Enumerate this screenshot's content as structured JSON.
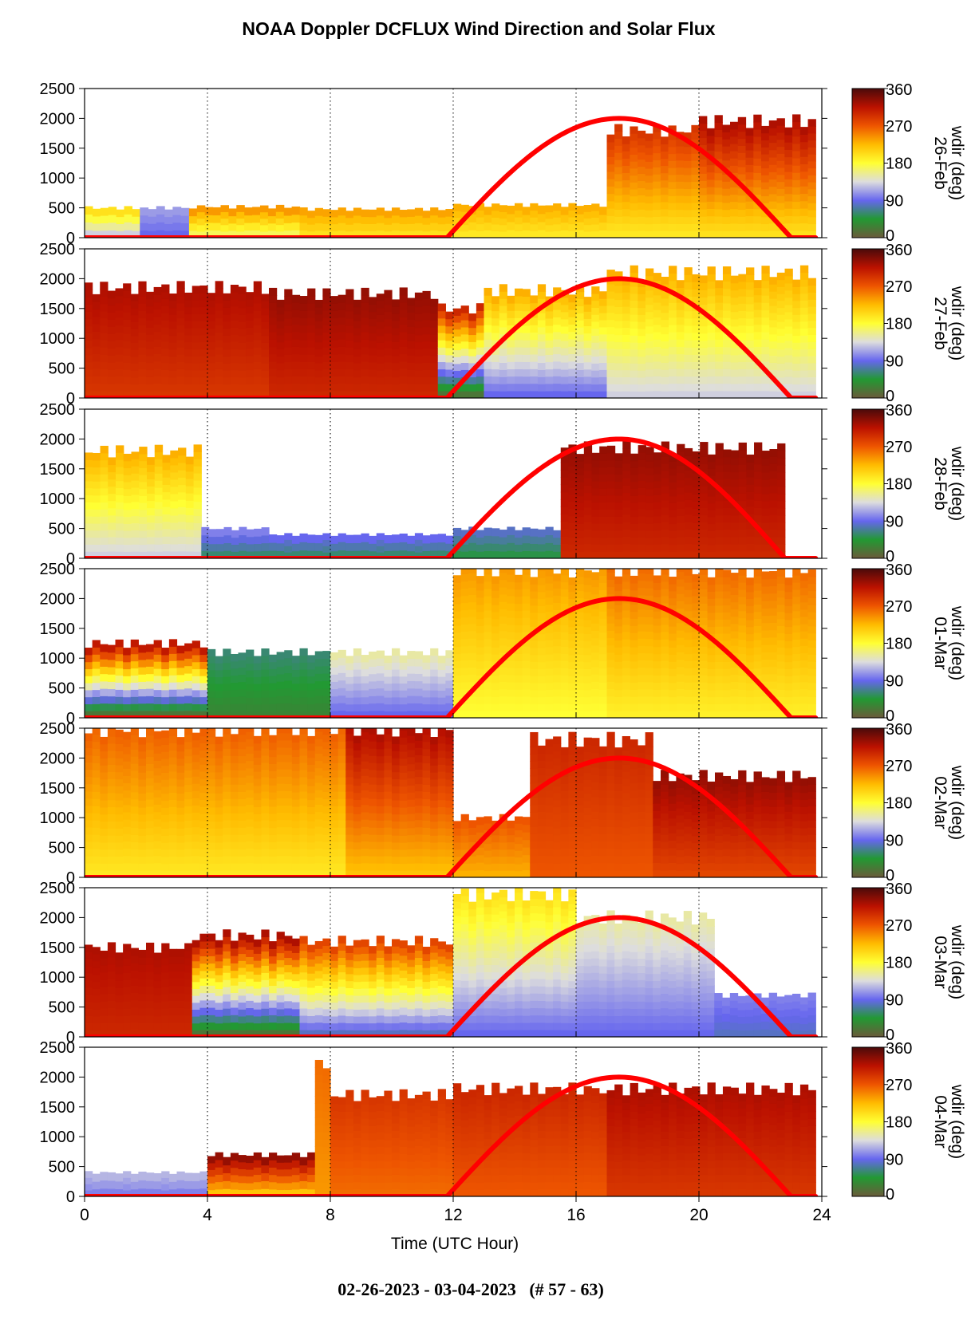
{
  "chart_data": {
    "type": "heatmap",
    "title": "NOAA Doppler DCFLUX Wind Direction and Solar Flux",
    "footer": "02-26-2023 - 03-04-2023   (# 57 - 63)",
    "xlabel": "Time (UTC Hour)",
    "xlim": [
      0,
      24
    ],
    "xticks": [
      "0",
      "4",
      "8",
      "12",
      "16",
      "20",
      "24"
    ],
    "xtick_values": [
      0,
      4,
      8,
      12,
      16,
      20,
      24
    ],
    "vertical_gridlines": [
      4,
      8,
      12,
      16,
      20,
      24
    ],
    "ylim": [
      0,
      2500
    ],
    "yticks": [
      "0",
      "500",
      "1000",
      "1500",
      "2000",
      "2500"
    ],
    "ytick_values": [
      0,
      500,
      1000,
      1500,
      2000,
      2500
    ],
    "colorbar": {
      "label": "wdir (deg)",
      "range": [
        0,
        360
      ],
      "ticks": [
        "0",
        "90",
        "180",
        "270",
        "360"
      ],
      "tick_values": [
        0,
        90,
        180,
        270,
        360
      ],
      "colors": [
        "#6b5a3a",
        "#229933",
        "#6666ee",
        "#dddddd",
        "#ffff33",
        "#ffbb00",
        "#ee5500",
        "#bb1100",
        "#4a0a0a"
      ]
    },
    "solar_flux": {
      "color": "#ff0000",
      "sunrise_hour": 11.8,
      "sunset_hour": 23.0,
      "peak_hour": 17.4,
      "peak_value": 2000
    },
    "panels": [
      {
        "date": "26-Feb",
        "sunset_hour": 23.0,
        "regions": [
          {
            "x": [
              0,
              1.8
            ],
            "ymax": 500,
            "wdir_low": 130,
            "wdir_high": 200
          },
          {
            "x": [
              1.8,
              3.4
            ],
            "ymax": 500,
            "wdir_low": 90,
            "wdir_high": 110
          },
          {
            "x": [
              3.4,
              7.0
            ],
            "ymax": 520,
            "wdir_low": 170,
            "wdir_high": 240
          },
          {
            "x": [
              7.0,
              12.0
            ],
            "ymax": 480,
            "wdir_low": 200,
            "wdir_high": 235
          },
          {
            "x": [
              12.0,
              17.0
            ],
            "ymax": 550,
            "wdir_low": 195,
            "wdir_high": 230
          },
          {
            "x": [
              17.0,
              20.0
            ],
            "ymax": 1800,
            "wdir_low": 195,
            "wdir_high": 290
          },
          {
            "x": [
              20.0,
              23.8
            ],
            "ymax": 1950,
            "wdir_low": 200,
            "wdir_high": 320
          }
        ]
      },
      {
        "date": "27-Feb",
        "sunset_hour": 23.0,
        "regions": [
          {
            "x": [
              0,
              6.0
            ],
            "ymax": 1850,
            "wdir_low": 290,
            "wdir_high": 320
          },
          {
            "x": [
              6.0,
              11.5
            ],
            "ymax": 1750,
            "wdir_low": 300,
            "wdir_high": 330
          },
          {
            "x": [
              11.5,
              13.0
            ],
            "ymax": 1500,
            "wdir_low": 20,
            "wdir_high": 300
          },
          {
            "x": [
              13.0,
              17.0
            ],
            "ymax": 1800,
            "wdir_low": 90,
            "wdir_high": 230
          },
          {
            "x": [
              17.0,
              23.8
            ],
            "ymax": 2100,
            "wdir_low": 130,
            "wdir_high": 230
          }
        ]
      },
      {
        "date": "28-Feb",
        "sunset_hour": 22.8,
        "regions": [
          {
            "x": [
              0,
              3.8
            ],
            "ymax": 1800,
            "wdir_low": 130,
            "wdir_high": 230
          },
          {
            "x": [
              3.8,
              6.0
            ],
            "ymax": 500,
            "wdir_low": 60,
            "wdir_high": 100
          },
          {
            "x": [
              6.0,
              12.0
            ],
            "ymax": 400,
            "wdir_low": 60,
            "wdir_high": 90
          },
          {
            "x": [
              12.0,
              15.5
            ],
            "ymax": 500,
            "wdir_low": 50,
            "wdir_high": 80
          },
          {
            "x": [
              15.5,
              22.8
            ],
            "ymax": 1850,
            "wdir_low": 300,
            "wdir_high": 330
          }
        ]
      },
      {
        "date": "01-Mar",
        "sunset_hour": 23.0,
        "regions": [
          {
            "x": [
              0,
              4.0
            ],
            "ymax": 1250,
            "wdir_low": 20,
            "wdir_high": 310
          },
          {
            "x": [
              4.0,
              8.0
            ],
            "ymax": 1100,
            "wdir_low": 30,
            "wdir_high": 60
          },
          {
            "x": [
              8.0,
              12.0
            ],
            "ymax": 1100,
            "wdir_low": 90,
            "wdir_high": 150
          },
          {
            "x": [
              12.0,
              17.0
            ],
            "ymax": 2500,
            "wdir_low": 180,
            "wdir_high": 240
          },
          {
            "x": [
              17.0,
              23.8
            ],
            "ymax": 2500,
            "wdir_low": 190,
            "wdir_high": 260
          }
        ]
      },
      {
        "date": "02-Mar",
        "sunset_hour": 23.0,
        "regions": [
          {
            "x": [
              0,
              8.5
            ],
            "ymax": 2500,
            "wdir_low": 195,
            "wdir_high": 265
          },
          {
            "x": [
              8.5,
              12.0
            ],
            "ymax": 2500,
            "wdir_low": 220,
            "wdir_high": 320
          },
          {
            "x": [
              12.0,
              14.5
            ],
            "ymax": 1000,
            "wdir_low": 230,
            "wdir_high": 270
          },
          {
            "x": [
              14.5,
              18.5
            ],
            "ymax": 2300,
            "wdir_low": 270,
            "wdir_high": 300
          },
          {
            "x": [
              18.5,
              23.8
            ],
            "ymax": 1700,
            "wdir_low": 280,
            "wdir_high": 330
          }
        ]
      },
      {
        "date": "03-Mar",
        "sunset_hour": 23.0,
        "regions": [
          {
            "x": [
              0,
              3.5
            ],
            "ymax": 1500,
            "wdir_low": 300,
            "wdir_high": 320
          },
          {
            "x": [
              3.5,
              7.0
            ],
            "ymax": 1700,
            "wdir_low": 20,
            "wdir_high": 320
          },
          {
            "x": [
              7.0,
              12.0
            ],
            "ymax": 1600,
            "wdir_low": 80,
            "wdir_high": 280
          },
          {
            "x": [
              12.0,
              16.0
            ],
            "ymax": 2400,
            "wdir_low": 90,
            "wdir_high": 200
          },
          {
            "x": [
              16.0,
              20.5
            ],
            "ymax": 2000,
            "wdir_low": 90,
            "wdir_high": 150
          },
          {
            "x": [
              20.5,
              23.8
            ],
            "ymax": 700,
            "wdir_low": 80,
            "wdir_high": 100
          }
        ]
      },
      {
        "date": "04-Mar",
        "sunset_hour": 23.0,
        "regions": [
          {
            "x": [
              0,
              4.0
            ],
            "ymax": 400,
            "wdir_low": 100,
            "wdir_high": 120
          },
          {
            "x": [
              4.0,
              7.5
            ],
            "ymax": 700,
            "wdir_low": 220,
            "wdir_high": 330
          },
          {
            "x": [
              7.5,
              8.0
            ],
            "ymax": 2250,
            "wdir_low": 240,
            "wdir_high": 260
          },
          {
            "x": [
              8.0,
              12.0
            ],
            "ymax": 1700,
            "wdir_low": 260,
            "wdir_high": 290
          },
          {
            "x": [
              12.0,
              17.0
            ],
            "ymax": 1800,
            "wdir_low": 270,
            "wdir_high": 300
          },
          {
            "x": [
              17.0,
              23.8
            ],
            "ymax": 1800,
            "wdir_low": 290,
            "wdir_high": 320
          }
        ]
      }
    ]
  }
}
